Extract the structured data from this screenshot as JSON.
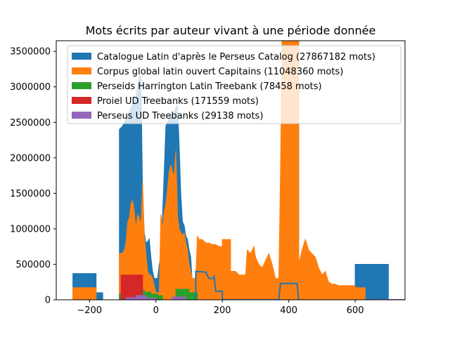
{
  "chart_data": {
    "type": "area",
    "title": "Mots écrits par auteur vivant à une période donnée",
    "xlabel": "",
    "ylabel": "",
    "xlim": [
      -300,
      750
    ],
    "ylim": [
      0,
      3650000
    ],
    "xticks": [
      -200,
      0,
      200,
      400,
      600
    ],
    "yticks": [
      0,
      500000,
      1000000,
      1500000,
      2000000,
      2500000,
      3000000,
      3500000
    ],
    "legend_position": "top-right",
    "grid": false,
    "series": [
      {
        "name": "Catalogue Latin d'après le Perseus Catalog (27867182 mots)",
        "color": "#1f77b4",
        "style": "filled",
        "points": [
          [
            -250,
            0
          ],
          [
            -250,
            370000
          ],
          [
            -180,
            370000
          ],
          [
            -180,
            100000
          ],
          [
            -160,
            100000
          ],
          [
            -160,
            0
          ],
          [
            -110,
            0
          ],
          [
            -110,
            2400000
          ],
          [
            -100,
            2450000
          ],
          [
            -95,
            2500000
          ],
          [
            -90,
            2550000
          ],
          [
            -85,
            2600000
          ],
          [
            -80,
            2650000
          ],
          [
            -75,
            2700000
          ],
          [
            -70,
            2750000
          ],
          [
            -65,
            2800000
          ],
          [
            -60,
            2850000
          ],
          [
            -55,
            3000000
          ],
          [
            -50,
            3150000
          ],
          [
            -45,
            3150000
          ],
          [
            -40,
            1500000
          ],
          [
            -35,
            950000
          ],
          [
            -30,
            800000
          ],
          [
            -25,
            820000
          ],
          [
            -20,
            860000
          ],
          [
            -15,
            600000
          ],
          [
            -10,
            400000
          ],
          [
            -5,
            300000
          ],
          [
            0,
            300000
          ],
          [
            5,
            300000
          ],
          [
            10,
            500000
          ],
          [
            15,
            600000
          ],
          [
            20,
            1200000
          ],
          [
            25,
            1800000
          ],
          [
            30,
            2450000
          ],
          [
            35,
            2500000
          ],
          [
            40,
            2550000
          ],
          [
            45,
            2600000
          ],
          [
            50,
            2600000
          ],
          [
            55,
            2650000
          ],
          [
            60,
            2700000
          ],
          [
            65,
            2750000
          ],
          [
            70,
            2200000
          ],
          [
            75,
            1500000
          ],
          [
            80,
            1100000
          ],
          [
            85,
            1050000
          ],
          [
            90,
            900000
          ],
          [
            95,
            850000
          ],
          [
            100,
            700000
          ],
          [
            105,
            600000
          ],
          [
            110,
            200000
          ],
          [
            120,
            100000
          ],
          [
            130,
            0
          ],
          [
            380,
            0
          ],
          [
            380,
            3650000
          ],
          [
            430,
            3650000
          ],
          [
            430,
            0
          ],
          [
            600,
            0
          ],
          [
            600,
            500000
          ],
          [
            700,
            500000
          ],
          [
            700,
            0
          ]
        ]
      },
      {
        "name": "Corpus global latin ouvert Capitains (11048360 mots)",
        "color": "#ff7f0e",
        "style": "filled",
        "points": [
          [
            -250,
            0
          ],
          [
            -250,
            170000
          ],
          [
            -180,
            170000
          ],
          [
            -180,
            0
          ],
          [
            -110,
            0
          ],
          [
            -110,
            650000
          ],
          [
            -100,
            660000
          ],
          [
            -95,
            700000
          ],
          [
            -90,
            800000
          ],
          [
            -85,
            1100000
          ],
          [
            -80,
            1150000
          ],
          [
            -75,
            1350000
          ],
          [
            -70,
            1400000
          ],
          [
            -65,
            1250000
          ],
          [
            -60,
            1000000
          ],
          [
            -55,
            1200000
          ],
          [
            -50,
            1150000
          ],
          [
            -45,
            1050000
          ],
          [
            -40,
            1650000
          ],
          [
            -35,
            900000
          ],
          [
            -30,
            650000
          ],
          [
            -25,
            400000
          ],
          [
            -20,
            350000
          ],
          [
            -15,
            350000
          ],
          [
            -10,
            300000
          ],
          [
            -5,
            200000
          ],
          [
            0,
            100000
          ],
          [
            10,
            100000
          ],
          [
            15,
            1200000
          ],
          [
            20,
            1000000
          ],
          [
            25,
            1250000
          ],
          [
            30,
            1350000
          ],
          [
            35,
            1550000
          ],
          [
            40,
            1800000
          ],
          [
            45,
            1900000
          ],
          [
            50,
            1800000
          ],
          [
            55,
            1750000
          ],
          [
            60,
            2100000
          ],
          [
            65,
            1200000
          ],
          [
            70,
            1000000
          ],
          [
            75,
            950000
          ],
          [
            80,
            900000
          ],
          [
            85,
            950000
          ],
          [
            90,
            800000
          ],
          [
            95,
            700000
          ],
          [
            100,
            500000
          ],
          [
            105,
            400000
          ],
          [
            110,
            300000
          ],
          [
            120,
            300000
          ],
          [
            125,
            900000
          ],
          [
            130,
            850000
          ],
          [
            140,
            850000
          ],
          [
            150,
            800000
          ],
          [
            160,
            800000
          ],
          [
            170,
            780000
          ],
          [
            180,
            780000
          ],
          [
            190,
            750000
          ],
          [
            200,
            750000
          ],
          [
            200,
            850000
          ],
          [
            225,
            850000
          ],
          [
            225,
            400000
          ],
          [
            240,
            400000
          ],
          [
            250,
            350000
          ],
          [
            270,
            350000
          ],
          [
            275,
            700000
          ],
          [
            285,
            650000
          ],
          [
            295,
            750000
          ],
          [
            300,
            600000
          ],
          [
            310,
            500000
          ],
          [
            320,
            450000
          ],
          [
            330,
            550000
          ],
          [
            340,
            650000
          ],
          [
            350,
            500000
          ],
          [
            360,
            300000
          ],
          [
            370,
            300000
          ],
          [
            375,
            1750000
          ],
          [
            380,
            3650000
          ],
          [
            430,
            3650000
          ],
          [
            430,
            500000
          ],
          [
            440,
            700000
          ],
          [
            450,
            850000
          ],
          [
            460,
            700000
          ],
          [
            470,
            650000
          ],
          [
            480,
            600000
          ],
          [
            490,
            450000
          ],
          [
            500,
            350000
          ],
          [
            510,
            400000
          ],
          [
            520,
            250000
          ],
          [
            530,
            220000
          ],
          [
            540,
            220000
          ],
          [
            550,
            200000
          ],
          [
            560,
            200000
          ],
          [
            570,
            200000
          ],
          [
            580,
            200000
          ],
          [
            590,
            200000
          ],
          [
            600,
            200000
          ],
          [
            600,
            170000
          ],
          [
            630,
            170000
          ],
          [
            630,
            0
          ]
        ]
      },
      {
        "name": "Perseids Harrington Latin Treebank (78458 mots)",
        "color": "#2ca02c",
        "style": "filled",
        "points": [
          [
            -110,
            0
          ],
          [
            -110,
            80000
          ],
          [
            -90,
            80000
          ],
          [
            -90,
            100000
          ],
          [
            -75,
            100000
          ],
          [
            -75,
            160000
          ],
          [
            -55,
            160000
          ],
          [
            -55,
            140000
          ],
          [
            -35,
            140000
          ],
          [
            -35,
            110000
          ],
          [
            -15,
            110000
          ],
          [
            -15,
            80000
          ],
          [
            5,
            80000
          ],
          [
            5,
            60000
          ],
          [
            20,
            60000
          ],
          [
            20,
            0
          ],
          [
            60,
            0
          ],
          [
            60,
            150000
          ],
          [
            100,
            150000
          ],
          [
            100,
            100000
          ],
          [
            125,
            100000
          ],
          [
            125,
            0
          ]
        ]
      },
      {
        "name": "Proiel UD Treebanks (171559 mots)",
        "color": "#d62728",
        "style": "filled",
        "points": [
          [
            -105,
            0
          ],
          [
            -105,
            350000
          ],
          [
            -40,
            350000
          ],
          [
            -40,
            0
          ]
        ]
      },
      {
        "name": "Perseus UD Treebanks (29138 mots)",
        "color": "#9467bd",
        "style": "filled",
        "points": [
          [
            -90,
            0
          ],
          [
            -90,
            30000
          ],
          [
            -60,
            30000
          ],
          [
            -60,
            60000
          ],
          [
            -30,
            60000
          ],
          [
            -30,
            25000
          ],
          [
            0,
            25000
          ],
          [
            0,
            0
          ],
          [
            50,
            0
          ],
          [
            50,
            40000
          ],
          [
            90,
            40000
          ],
          [
            90,
            0
          ],
          [
            650,
            0
          ],
          [
            650,
            5000
          ],
          [
            750,
            5000
          ],
          [
            750,
            0
          ]
        ]
      },
      {
        "name": "",
        "color": "#1f77b4",
        "style": "step-line",
        "points": [
          [
            120,
            0
          ],
          [
            120,
            400000
          ],
          [
            150,
            390000
          ],
          [
            160,
            300000
          ],
          [
            175,
            300000
          ],
          [
            175,
            350000
          ],
          [
            180,
            120000
          ],
          [
            200,
            120000
          ],
          [
            200,
            0
          ],
          [
            370,
            0
          ],
          [
            375,
            230000
          ],
          [
            425,
            230000
          ],
          [
            430,
            0
          ]
        ]
      }
    ]
  }
}
